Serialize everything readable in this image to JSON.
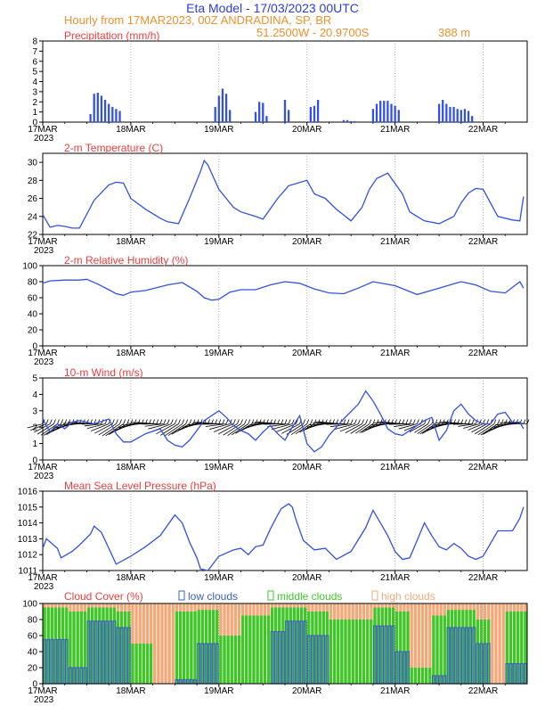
{
  "header": {
    "title": "Eta Model - 17/03/2023 00UTC",
    "line2": "Hourly from 17MAR2023, 00Z  ANDRADINA, SP, BR",
    "coords": "51.2500W - 20.9700S",
    "elevation": "388  m",
    "title_color": "#2e3cdc",
    "subtitle_color": "#f0902c"
  },
  "time_axis": {
    "labels": [
      "17MAR",
      "18MAR",
      "19MAR",
      "20MAR",
      "21MAR",
      "22MAR"
    ],
    "year": "2023",
    "hours_total": 132
  },
  "colors": {
    "series": "#3250e6",
    "title_red": "#f03c3c",
    "low": "#3a5fc0",
    "middle": "#3cc828",
    "high": "#f4a878"
  },
  "chart_data": [
    {
      "type": "bar",
      "title": "Precipitation (mm/h)",
      "ylim": [
        0,
        8
      ],
      "yticks": [
        "0",
        "1",
        "2",
        "3",
        "4",
        "5",
        "6",
        "7",
        "8"
      ],
      "x_hours": [
        13,
        14,
        15,
        16,
        17,
        18,
        19,
        20,
        21,
        47,
        48,
        49,
        50,
        51,
        58,
        59,
        60,
        61,
        66,
        67,
        73,
        74,
        75,
        82,
        83,
        84,
        85,
        90,
        91,
        92,
        93,
        94,
        95,
        96,
        97,
        108,
        109,
        110,
        111,
        112,
        113,
        114,
        115,
        116,
        117
      ],
      "values": [
        0.8,
        2.8,
        2.9,
        2.6,
        2.2,
        1.8,
        1.5,
        1.3,
        1.1,
        1.5,
        2.6,
        3.3,
        2.8,
        1.2,
        1,
        2,
        1.9,
        0.6,
        2.2,
        1.2,
        1.5,
        1.6,
        2.2,
        0.2,
        0.2,
        0.1,
        0.1,
        1.3,
        1.8,
        2.1,
        2.1,
        2.1,
        1.8,
        1.6,
        1.2,
        1.8,
        2.2,
        1.8,
        1.5,
        1.5,
        1.3,
        1.2,
        1.3,
        1.1,
        0.6
      ]
    },
    {
      "type": "line",
      "title": "2-m Temperature (C)",
      "ylim": [
        22,
        31
      ],
      "yticks": [
        "22",
        "24",
        "26",
        "28",
        "30"
      ],
      "x": [
        0,
        2,
        4,
        6,
        8,
        10,
        14,
        18,
        20,
        22,
        24,
        28,
        32,
        34,
        37,
        40,
        41,
        43,
        44,
        45,
        48,
        52,
        54,
        58,
        60,
        64,
        67,
        72,
        74,
        77,
        80,
        84,
        87,
        89,
        91,
        94,
        98,
        100,
        102,
        104,
        108,
        112,
        114,
        116,
        118,
        120,
        124,
        128,
        130,
        131
      ],
      "y": [
        24.2,
        22.8,
        23.0,
        22.9,
        22.7,
        22.7,
        25.8,
        27.5,
        27.8,
        27.7,
        26.0,
        24.8,
        23.8,
        23.4,
        23.2,
        26.0,
        27.0,
        29.0,
        30.2,
        29.7,
        27.0,
        25.0,
        24.5,
        24.0,
        23.7,
        26.0,
        27.4,
        28.0,
        26.5,
        26.0,
        24.8,
        23.5,
        25.0,
        27.0,
        28.2,
        28.8,
        26.5,
        24.5,
        24.0,
        23.5,
        23.2,
        24.0,
        25.5,
        26.6,
        27.1,
        27.0,
        24.0,
        23.6,
        23.5,
        26.2
      ]
    },
    {
      "type": "line",
      "title": "2-m Relative Humidity (%)",
      "ylim": [
        0,
        100
      ],
      "yticks": [
        "0",
        "20",
        "40",
        "60",
        "80",
        "100"
      ],
      "x": [
        0,
        2,
        6,
        10,
        12,
        15,
        18,
        20,
        22,
        24,
        28,
        34,
        38,
        42,
        44,
        46,
        48,
        51,
        54,
        58,
        62,
        66,
        70,
        74,
        78,
        82,
        86,
        90,
        96,
        102,
        108,
        114,
        118,
        122,
        126,
        130,
        131
      ],
      "y": [
        78,
        81,
        82,
        82,
        83,
        77,
        70,
        65,
        63,
        67,
        69,
        76,
        79,
        68,
        60,
        57,
        58,
        67,
        70,
        70,
        76,
        80,
        78,
        71,
        66,
        65,
        72,
        80,
        75,
        64,
        72,
        80,
        76,
        68,
        66,
        80,
        72
      ]
    },
    {
      "type": "line",
      "title": "10-m Wind (m/s)",
      "ylim": [
        0,
        5
      ],
      "yticks": [
        "0",
        "1",
        "2",
        "3",
        "4",
        "5"
      ],
      "x": [
        0,
        2,
        4,
        6,
        8,
        10,
        14,
        18,
        20,
        22,
        24,
        28,
        32,
        34,
        36,
        38,
        40,
        44,
        48,
        50,
        52,
        54,
        56,
        58,
        60,
        62,
        64,
        66,
        68,
        70,
        72,
        74,
        76,
        78,
        82,
        86,
        88,
        90,
        92,
        94,
        96,
        98,
        100,
        104,
        106,
        108,
        110,
        112,
        114,
        116,
        118,
        120,
        122,
        124,
        126,
        128,
        130,
        131
      ],
      "y": [
        2.5,
        1.7,
        2.2,
        1.9,
        2.3,
        2.4,
        2.2,
        2.5,
        1.6,
        1.1,
        1.1,
        1.6,
        1.9,
        1.2,
        0.9,
        0.8,
        1.2,
        2.4,
        3.0,
        2.6,
        2.1,
        1.8,
        1.6,
        1.2,
        1.7,
        2.1,
        1.6,
        1.2,
        2.0,
        2.7,
        1.0,
        0.5,
        0.8,
        1.5,
        2.5,
        3.4,
        4.2,
        3.6,
        2.8,
        1.9,
        1.6,
        1.5,
        1.8,
        2.4,
        2.6,
        1.2,
        1.8,
        3.0,
        3.4,
        2.8,
        2.4,
        2.2,
        2.2,
        2.8,
        2.9,
        2.3,
        2.3,
        1.9
      ],
      "barbs_on": true
    },
    {
      "type": "line",
      "title": "Mean Sea Level Pressure (hPa)",
      "ylim": [
        1011,
        1016
      ],
      "yticks": [
        "1011",
        "1012",
        "1013",
        "1014",
        "1015",
        "1016"
      ],
      "x": [
        0,
        1,
        4,
        5,
        8,
        10,
        13,
        14,
        16,
        18,
        20,
        24,
        28,
        32,
        36,
        38,
        40,
        42,
        43,
        45,
        48,
        52,
        54,
        56,
        58,
        60,
        62,
        64,
        65,
        67,
        68,
        69,
        71,
        74,
        77,
        80,
        84,
        88,
        90,
        94,
        96,
        98,
        100,
        102,
        104,
        106,
        108,
        110,
        112,
        114,
        116,
        118,
        120,
        124,
        128,
        130,
        131
      ],
      "y": [
        1012.4,
        1013.0,
        1012.4,
        1011.8,
        1012.2,
        1012.6,
        1013.3,
        1013.8,
        1013.4,
        1012.4,
        1011.4,
        1011.9,
        1012.5,
        1013.2,
        1014.5,
        1014.0,
        1012.8,
        1011.8,
        1011.1,
        1011.0,
        1011.9,
        1012.3,
        1012.4,
        1012.0,
        1012.5,
        1012.6,
        1013.6,
        1014.5,
        1014.9,
        1015.2,
        1015.0,
        1014.2,
        1012.9,
        1012.3,
        1012.4,
        1011.7,
        1012.2,
        1013.7,
        1014.8,
        1013.2,
        1012.2,
        1011.7,
        1011.8,
        1012.9,
        1014.0,
        1013.2,
        1012.5,
        1012.3,
        1012.7,
        1012.4,
        1011.9,
        1011.7,
        1011.9,
        1013.5,
        1013.5,
        1014.3,
        1015.0
      ]
    },
    {
      "type": "bar",
      "title": "Cloud Cover (%)",
      "ylim": [
        0,
        100
      ],
      "yticks": [
        "0",
        "20",
        "40",
        "60",
        "80",
        "100"
      ],
      "legend": [
        "low clouds",
        "middle clouds",
        "high clouds"
      ],
      "segments": [
        {
          "from": 0,
          "to": 7,
          "high": 100,
          "middle": 95,
          "low": 55
        },
        {
          "from": 7,
          "to": 12,
          "high": 100,
          "middle": 90,
          "low": 20
        },
        {
          "from": 12,
          "to": 20,
          "high": 100,
          "middle": 95,
          "low": 78
        },
        {
          "from": 20,
          "to": 24,
          "high": 100,
          "middle": 90,
          "low": 70
        },
        {
          "from": 24,
          "to": 30,
          "high": 100,
          "middle": 50,
          "low": 0
        },
        {
          "from": 30,
          "to": 36,
          "high": 100,
          "middle": 0,
          "low": 0
        },
        {
          "from": 36,
          "to": 42,
          "high": 100,
          "middle": 90,
          "low": 5
        },
        {
          "from": 42,
          "to": 48,
          "high": 100,
          "middle": 92,
          "low": 50
        },
        {
          "from": 48,
          "to": 54,
          "high": 100,
          "middle": 60,
          "low": 0
        },
        {
          "from": 54,
          "to": 62,
          "high": 100,
          "middle": 85,
          "low": 0
        },
        {
          "from": 62,
          "to": 66,
          "high": 100,
          "middle": 95,
          "low": 65
        },
        {
          "from": 66,
          "to": 72,
          "high": 100,
          "middle": 95,
          "low": 78
        },
        {
          "from": 72,
          "to": 78,
          "high": 100,
          "middle": 90,
          "low": 60
        },
        {
          "from": 78,
          "to": 84,
          "high": 100,
          "middle": 80,
          "low": 0
        },
        {
          "from": 84,
          "to": 90,
          "high": 100,
          "middle": 80,
          "low": 0
        },
        {
          "from": 90,
          "to": 96,
          "high": 100,
          "middle": 95,
          "low": 72
        },
        {
          "from": 96,
          "to": 100,
          "high": 100,
          "middle": 90,
          "low": 40
        },
        {
          "from": 100,
          "to": 106,
          "high": 100,
          "middle": 20,
          "low": 0
        },
        {
          "from": 106,
          "to": 110,
          "high": 100,
          "middle": 85,
          "low": 10
        },
        {
          "from": 110,
          "to": 118,
          "high": 100,
          "middle": 92,
          "low": 70
        },
        {
          "from": 118,
          "to": 122,
          "high": 100,
          "middle": 80,
          "low": 50
        },
        {
          "from": 122,
          "to": 126,
          "high": 100,
          "middle": 0,
          "low": 0
        },
        {
          "from": 126,
          "to": 132,
          "high": 100,
          "middle": 90,
          "low": 25
        }
      ]
    }
  ]
}
